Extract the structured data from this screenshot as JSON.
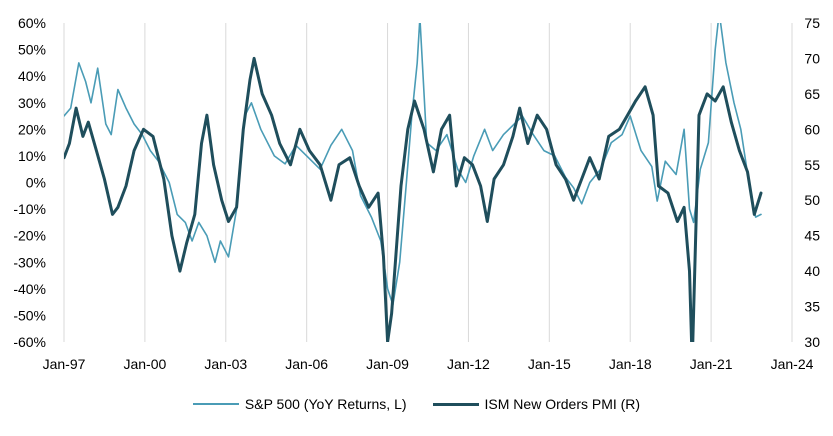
{
  "chart_data": {
    "type": "line",
    "title": "",
    "xlabel": "",
    "ylabel_left": "",
    "ylabel_right": "",
    "x_range": [
      1997.0,
      2024.0
    ],
    "x_ticks": [
      {
        "x": 1997,
        "label": "Jan-97"
      },
      {
        "x": 2000,
        "label": "Jan-00"
      },
      {
        "x": 2003,
        "label": "Jan-03"
      },
      {
        "x": 2006,
        "label": "Jan-06"
      },
      {
        "x": 2009,
        "label": "Jan-09"
      },
      {
        "x": 2012,
        "label": "Jan-12"
      },
      {
        "x": 2015,
        "label": "Jan-15"
      },
      {
        "x": 2018,
        "label": "Jan-18"
      },
      {
        "x": 2021,
        "label": "Jan-21"
      },
      {
        "x": 2024,
        "label": "Jan-24"
      }
    ],
    "y_left": {
      "min": -60,
      "max": 60,
      "ticks": [
        {
          "v": 60,
          "label": "60%"
        },
        {
          "v": 50,
          "label": "50%"
        },
        {
          "v": 40,
          "label": "40%"
        },
        {
          "v": 30,
          "label": "30%"
        },
        {
          "v": 20,
          "label": "20%"
        },
        {
          "v": 10,
          "label": "10%"
        },
        {
          "v": 0,
          "label": "0%"
        },
        {
          "v": -10,
          "label": "-10%"
        },
        {
          "v": -20,
          "label": "-20%"
        },
        {
          "v": -30,
          "label": "-30%"
        },
        {
          "v": -40,
          "label": "-40%"
        },
        {
          "v": -50,
          "label": "-50%"
        },
        {
          "v": -60,
          "label": "-60%"
        }
      ]
    },
    "y_right": {
      "min": 30,
      "max": 75,
      "ticks": [
        {
          "v": 75,
          "label": "75"
        },
        {
          "v": 70,
          "label": "70"
        },
        {
          "v": 65,
          "label": "65"
        },
        {
          "v": 60,
          "label": "60"
        },
        {
          "v": 55,
          "label": "55"
        },
        {
          "v": 50,
          "label": "50"
        },
        {
          "v": 45,
          "label": "45"
        },
        {
          "v": 40,
          "label": "40"
        },
        {
          "v": 35,
          "label": "35"
        },
        {
          "v": 30,
          "label": "30"
        }
      ]
    },
    "grid": {
      "vertical": true,
      "horizontal": false
    },
    "legend_position": "bottom-center",
    "series": [
      {
        "name": "S&P 500 (YoY Returns, L)",
        "axis": "left",
        "color": "#4a9cb6",
        "points": [
          [
            1997.0,
            25
          ],
          [
            1997.25,
            28
          ],
          [
            1997.55,
            45
          ],
          [
            1997.8,
            38
          ],
          [
            1998.0,
            30
          ],
          [
            1998.25,
            43
          ],
          [
            1998.55,
            22
          ],
          [
            1998.75,
            18
          ],
          [
            1999.0,
            35
          ],
          [
            1999.3,
            28
          ],
          [
            1999.6,
            22
          ],
          [
            1999.9,
            18
          ],
          [
            2000.2,
            12
          ],
          [
            2000.5,
            8
          ],
          [
            2000.9,
            0
          ],
          [
            2001.2,
            -12
          ],
          [
            2001.5,
            -15
          ],
          [
            2001.75,
            -22
          ],
          [
            2002.0,
            -15
          ],
          [
            2002.3,
            -20
          ],
          [
            2002.6,
            -30
          ],
          [
            2002.8,
            -22
          ],
          [
            2003.1,
            -28
          ],
          [
            2003.4,
            -10
          ],
          [
            2003.7,
            25
          ],
          [
            2003.95,
            30
          ],
          [
            2004.3,
            20
          ],
          [
            2004.8,
            10
          ],
          [
            2005.2,
            7
          ],
          [
            2005.6,
            14
          ],
          [
            2006.0,
            10
          ],
          [
            2006.5,
            5
          ],
          [
            2006.9,
            14
          ],
          [
            2007.3,
            20
          ],
          [
            2007.7,
            12
          ],
          [
            2008.0,
            -5
          ],
          [
            2008.4,
            -13
          ],
          [
            2008.75,
            -22
          ],
          [
            2009.0,
            -40
          ],
          [
            2009.2,
            -46
          ],
          [
            2009.45,
            -30
          ],
          [
            2009.7,
            0
          ],
          [
            2009.9,
            25
          ],
          [
            2010.1,
            45
          ],
          [
            2010.2,
            62
          ],
          [
            2010.45,
            15
          ],
          [
            2010.8,
            12
          ],
          [
            2011.2,
            18
          ],
          [
            2011.6,
            5
          ],
          [
            2011.9,
            0
          ],
          [
            2012.2,
            10
          ],
          [
            2012.6,
            20
          ],
          [
            2012.9,
            12
          ],
          [
            2013.3,
            18
          ],
          [
            2013.7,
            22
          ],
          [
            2014.0,
            25
          ],
          [
            2014.4,
            18
          ],
          [
            2014.8,
            12
          ],
          [
            2015.2,
            10
          ],
          [
            2015.6,
            2
          ],
          [
            2015.9,
            -2
          ],
          [
            2016.2,
            -8
          ],
          [
            2016.5,
            0
          ],
          [
            2016.9,
            5
          ],
          [
            2017.3,
            15
          ],
          [
            2017.7,
            18
          ],
          [
            2018.0,
            25
          ],
          [
            2018.4,
            12
          ],
          [
            2018.8,
            6
          ],
          [
            2019.0,
            -7
          ],
          [
            2019.3,
            8
          ],
          [
            2019.7,
            3
          ],
          [
            2020.0,
            20
          ],
          [
            2020.2,
            -10
          ],
          [
            2020.35,
            -15
          ],
          [
            2020.6,
            5
          ],
          [
            2020.9,
            15
          ],
          [
            2021.15,
            50
          ],
          [
            2021.3,
            64
          ],
          [
            2021.55,
            45
          ],
          [
            2021.85,
            30
          ],
          [
            2022.1,
            20
          ],
          [
            2022.4,
            0
          ],
          [
            2022.65,
            -13
          ],
          [
            2022.85,
            -12
          ]
        ]
      },
      {
        "name": "ISM New Orders PMI (R)",
        "axis": "right",
        "color": "#1f4e5c",
        "points": [
          [
            1997.0,
            56
          ],
          [
            1997.2,
            58
          ],
          [
            1997.45,
            63
          ],
          [
            1997.7,
            59
          ],
          [
            1997.9,
            61
          ],
          [
            1998.2,
            57
          ],
          [
            1998.5,
            53
          ],
          [
            1998.8,
            48
          ],
          [
            1999.0,
            49
          ],
          [
            1999.3,
            52
          ],
          [
            1999.6,
            57
          ],
          [
            1999.95,
            60
          ],
          [
            2000.3,
            59
          ],
          [
            2000.7,
            53
          ],
          [
            2001.0,
            45
          ],
          [
            2001.3,
            40
          ],
          [
            2001.55,
            44
          ],
          [
            2001.85,
            48
          ],
          [
            2002.1,
            58
          ],
          [
            2002.3,
            62
          ],
          [
            2002.55,
            55
          ],
          [
            2002.85,
            50
          ],
          [
            2003.1,
            47
          ],
          [
            2003.4,
            49
          ],
          [
            2003.65,
            60
          ],
          [
            2003.9,
            67
          ],
          [
            2004.05,
            70
          ],
          [
            2004.35,
            65
          ],
          [
            2004.7,
            62
          ],
          [
            2005.0,
            58
          ],
          [
            2005.4,
            55
          ],
          [
            2005.75,
            60
          ],
          [
            2006.1,
            57
          ],
          [
            2006.5,
            55
          ],
          [
            2006.9,
            50
          ],
          [
            2007.2,
            55
          ],
          [
            2007.6,
            56
          ],
          [
            2007.95,
            52
          ],
          [
            2008.3,
            49
          ],
          [
            2008.65,
            51
          ],
          [
            2008.85,
            42
          ],
          [
            2009.0,
            30
          ],
          [
            2009.15,
            34
          ],
          [
            2009.5,
            52
          ],
          [
            2009.75,
            60
          ],
          [
            2010.0,
            64
          ],
          [
            2010.35,
            60
          ],
          [
            2010.7,
            54
          ],
          [
            2011.0,
            60
          ],
          [
            2011.3,
            62
          ],
          [
            2011.55,
            52
          ],
          [
            2011.85,
            56
          ],
          [
            2012.15,
            55
          ],
          [
            2012.45,
            52
          ],
          [
            2012.7,
            47
          ],
          [
            2012.95,
            53
          ],
          [
            2013.3,
            55
          ],
          [
            2013.65,
            59
          ],
          [
            2013.9,
            63
          ],
          [
            2014.2,
            58
          ],
          [
            2014.55,
            62
          ],
          [
            2014.9,
            60
          ],
          [
            2015.25,
            55
          ],
          [
            2015.6,
            53
          ],
          [
            2015.9,
            50
          ],
          [
            2016.2,
            53
          ],
          [
            2016.5,
            56
          ],
          [
            2016.85,
            53
          ],
          [
            2017.2,
            59
          ],
          [
            2017.6,
            60
          ],
          [
            2017.9,
            62
          ],
          [
            2018.2,
            64
          ],
          [
            2018.55,
            66
          ],
          [
            2018.85,
            62
          ],
          [
            2019.05,
            52
          ],
          [
            2019.4,
            51
          ],
          [
            2019.75,
            47
          ],
          [
            2020.0,
            49
          ],
          [
            2020.2,
            40
          ],
          [
            2020.3,
            27
          ],
          [
            2020.55,
            62
          ],
          [
            2020.85,
            65
          ],
          [
            2021.15,
            64
          ],
          [
            2021.45,
            66
          ],
          [
            2021.75,
            61
          ],
          [
            2022.05,
            57
          ],
          [
            2022.35,
            54
          ],
          [
            2022.6,
            48
          ],
          [
            2022.85,
            51
          ]
        ]
      }
    ]
  },
  "legend": {
    "sp500_label": "S&P 500 (YoY Returns, L)",
    "ism_label": "ISM New Orders PMI (R)"
  }
}
